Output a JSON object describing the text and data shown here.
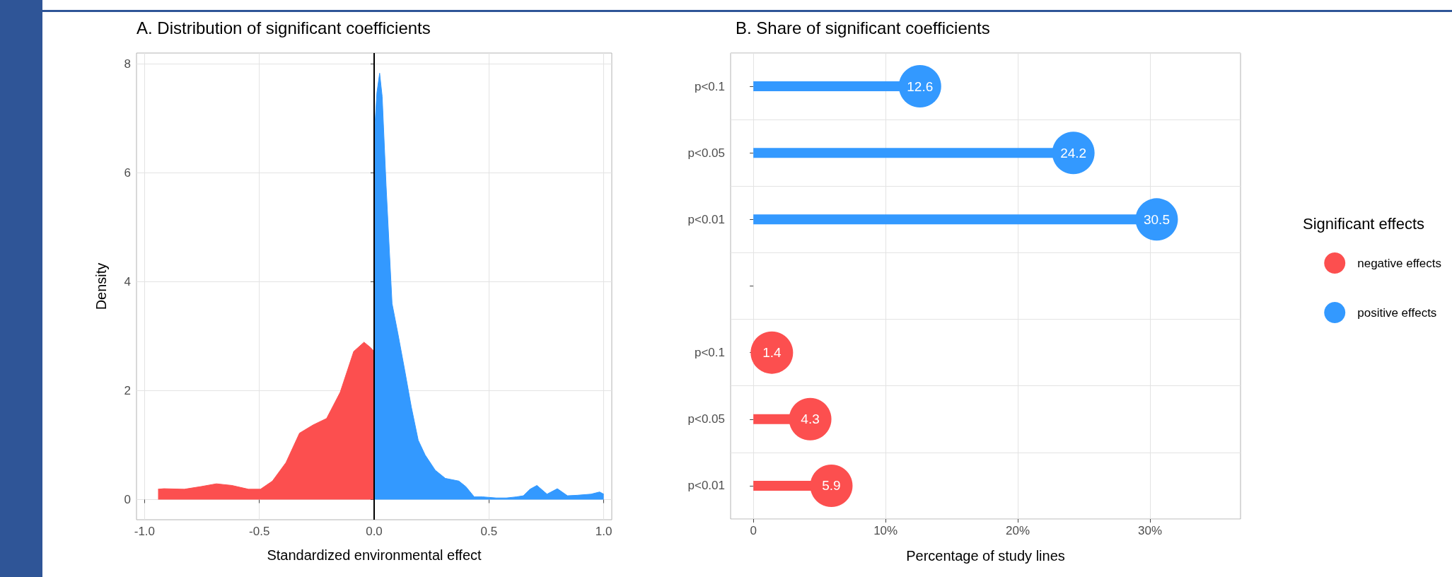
{
  "chart_data": [
    {
      "type": "area",
      "title": "A. Distribution of significant coefficients",
      "xlabel": "Standardized environmental effect",
      "ylabel": "Density",
      "xlim": [
        -1.035,
        1.035
      ],
      "xticks": [
        {
          "value": -1,
          "label": "-1.0"
        },
        -0.5,
        {
          "value": 0,
          "label": "0.0"
        },
        0.5,
        {
          "value": 1,
          "label": "1.0"
        }
      ],
      "ylim": [
        -0.37,
        8.2
      ],
      "yticks": [
        0,
        2,
        4,
        6,
        8
      ],
      "grid": true,
      "legend": false,
      "ref_lines": [
        {
          "axis": "x",
          "value": 0,
          "color": "#000000"
        }
      ],
      "series": [
        {
          "color": "#fc4f4f",
          "x": [
            -0.941,
            -0.916,
            -0.827,
            -0.753,
            -0.687,
            -0.62,
            -0.547,
            -0.495,
            -0.443,
            -0.384,
            -0.325,
            -0.266,
            -0.207,
            -0.148,
            -0.089,
            -0.044,
            -0.015,
            0
          ],
          "values": [
            0.19,
            0.2,
            0.19,
            0.24,
            0.29,
            0.26,
            0.19,
            0.19,
            0.34,
            0.68,
            1.22,
            1.37,
            1.49,
            1.97,
            2.72,
            2.89,
            2.79,
            2.72
          ]
        },
        {
          "color": "#3399ff",
          "x": [
            0,
            0.012,
            0.024,
            0.035,
            0.052,
            0.078,
            0.103,
            0.133,
            0.162,
            0.192,
            0.222,
            0.266,
            0.31,
            0.369,
            0.399,
            0.436,
            0.473,
            0.532,
            0.576,
            0.62,
            0.65,
            0.679,
            0.709,
            0.753,
            0.798,
            0.842,
            0.886,
            0.945,
            0.982,
            1.0
          ],
          "values": [
            6.66,
            7.47,
            7.83,
            7.4,
            5.77,
            3.6,
            3.06,
            2.38,
            1.7,
            1.09,
            0.82,
            0.54,
            0.39,
            0.34,
            0.24,
            0.05,
            0.05,
            0.03,
            0.03,
            0.05,
            0.07,
            0.19,
            0.26,
            0.1,
            0.2,
            0.07,
            0.08,
            0.1,
            0.14,
            0.1
          ]
        }
      ]
    },
    {
      "type": "lollipop",
      "orientation": "horizontal",
      "title": "B. Share of significant coefficients",
      "xlabel": "Percentage of study lines",
      "legend_title": "Significant effects",
      "legend": "right",
      "categories": [
        "p<0.1",
        "p<0.05",
        "p<0.01",
        null,
        "p<0.1",
        "p<0.05",
        "p<0.01"
      ],
      "xlim": [
        -1.72,
        36.84
      ],
      "xticks": [
        0,
        {
          "value": 10,
          "label": "10%"
        },
        {
          "value": 20,
          "label": "20%"
        },
        {
          "value": 30,
          "label": "30%"
        }
      ],
      "grid": true,
      "data_labels": true,
      "series": [
        {
          "name": "negative effects",
          "color": "#fc4f4f",
          "values": [
            null,
            null,
            null,
            null,
            1.4,
            4.3,
            5.9
          ]
        },
        {
          "name": "positive effects",
          "color": "#3399ff",
          "values": [
            12.6,
            24.2,
            30.5,
            null,
            null,
            null,
            null
          ]
        }
      ]
    }
  ]
}
